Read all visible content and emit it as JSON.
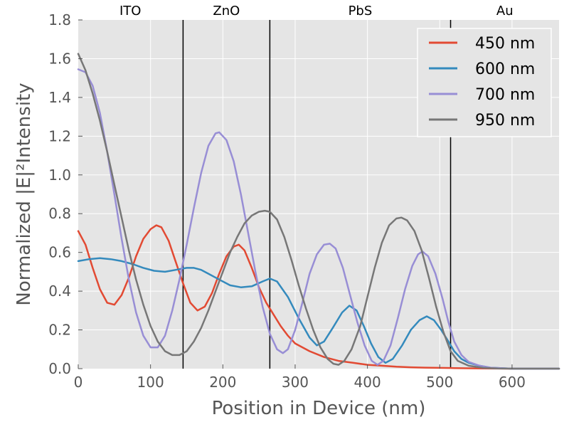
{
  "chart_data": {
    "type": "line",
    "xlabel": "Position in Device (nm)",
    "ylabel": "Normalized |E|²Intensity",
    "xlim": [
      0,
      665
    ],
    "ylim": [
      0,
      1.8
    ],
    "x_ticks": [
      0,
      100,
      200,
      300,
      400,
      500,
      600
    ],
    "y_ticks": [
      0.0,
      0.2,
      0.4,
      0.6,
      0.8,
      1.0,
      1.2,
      1.4,
      1.6,
      1.8
    ],
    "x_tick_labels": [
      "0",
      "100",
      "200",
      "300",
      "400",
      "500",
      "600"
    ],
    "y_tick_labels": [
      "0.0",
      "0.2",
      "0.4",
      "0.6",
      "0.8",
      "1.0",
      "1.2",
      "1.4",
      "1.6",
      "1.8"
    ],
    "grid": true,
    "legend_position": "top-right",
    "layer_boundaries": [
      145,
      265,
      515
    ],
    "layer_labels": [
      {
        "text": "ITO",
        "x": 72
      },
      {
        "text": "ZnO",
        "x": 205
      },
      {
        "text": "PbS",
        "x": 390
      },
      {
        "text": "Au",
        "x": 590
      }
    ],
    "series": [
      {
        "name": "450 nm",
        "color": "#E24A33",
        "points": [
          [
            0,
            0.71
          ],
          [
            10,
            0.64
          ],
          [
            20,
            0.52
          ],
          [
            30,
            0.41
          ],
          [
            40,
            0.34
          ],
          [
            50,
            0.33
          ],
          [
            60,
            0.38
          ],
          [
            70,
            0.47
          ],
          [
            80,
            0.58
          ],
          [
            90,
            0.67
          ],
          [
            100,
            0.72
          ],
          [
            108,
            0.74
          ],
          [
            115,
            0.73
          ],
          [
            125,
            0.66
          ],
          [
            135,
            0.55
          ],
          [
            145,
            0.44
          ],
          [
            155,
            0.34
          ],
          [
            165,
            0.3
          ],
          [
            175,
            0.32
          ],
          [
            185,
            0.39
          ],
          [
            195,
            0.49
          ],
          [
            205,
            0.58
          ],
          [
            215,
            0.63
          ],
          [
            222,
            0.64
          ],
          [
            230,
            0.61
          ],
          [
            240,
            0.52
          ],
          [
            250,
            0.42
          ],
          [
            260,
            0.34
          ],
          [
            270,
            0.28
          ],
          [
            280,
            0.22
          ],
          [
            290,
            0.17
          ],
          [
            300,
            0.13
          ],
          [
            320,
            0.09
          ],
          [
            340,
            0.06
          ],
          [
            360,
            0.04
          ],
          [
            380,
            0.03
          ],
          [
            400,
            0.02
          ],
          [
            420,
            0.015
          ],
          [
            440,
            0.01
          ],
          [
            460,
            0.007
          ],
          [
            480,
            0.005
          ],
          [
            500,
            0.004
          ],
          [
            520,
            0.003
          ],
          [
            560,
            0.001
          ],
          [
            600,
            0.0
          ],
          [
            665,
            0.0
          ]
        ]
      },
      {
        "name": "600 nm",
        "color": "#348ABD",
        "points": [
          [
            0,
            0.555
          ],
          [
            15,
            0.565
          ],
          [
            30,
            0.57
          ],
          [
            45,
            0.565
          ],
          [
            60,
            0.555
          ],
          [
            75,
            0.54
          ],
          [
            90,
            0.52
          ],
          [
            105,
            0.505
          ],
          [
            120,
            0.5
          ],
          [
            135,
            0.51
          ],
          [
            150,
            0.52
          ],
          [
            160,
            0.52
          ],
          [
            170,
            0.51
          ],
          [
            180,
            0.49
          ],
          [
            195,
            0.46
          ],
          [
            210,
            0.43
          ],
          [
            225,
            0.42
          ],
          [
            240,
            0.425
          ],
          [
            255,
            0.45
          ],
          [
            265,
            0.465
          ],
          [
            275,
            0.45
          ],
          [
            290,
            0.37
          ],
          [
            305,
            0.26
          ],
          [
            320,
            0.16
          ],
          [
            330,
            0.12
          ],
          [
            340,
            0.14
          ],
          [
            352,
            0.21
          ],
          [
            365,
            0.29
          ],
          [
            375,
            0.325
          ],
          [
            385,
            0.3
          ],
          [
            395,
            0.22
          ],
          [
            405,
            0.13
          ],
          [
            415,
            0.06
          ],
          [
            425,
            0.03
          ],
          [
            435,
            0.05
          ],
          [
            448,
            0.12
          ],
          [
            460,
            0.2
          ],
          [
            472,
            0.25
          ],
          [
            482,
            0.27
          ],
          [
            492,
            0.25
          ],
          [
            502,
            0.2
          ],
          [
            512,
            0.14
          ],
          [
            520,
            0.09
          ],
          [
            530,
            0.05
          ],
          [
            540,
            0.03
          ],
          [
            555,
            0.015
          ],
          [
            570,
            0.005
          ],
          [
            600,
            0.0
          ],
          [
            665,
            0.0
          ]
        ]
      },
      {
        "name": "700 nm",
        "color": "#988ED5",
        "points": [
          [
            0,
            1.545
          ],
          [
            10,
            1.53
          ],
          [
            20,
            1.46
          ],
          [
            30,
            1.32
          ],
          [
            40,
            1.12
          ],
          [
            50,
            0.9
          ],
          [
            60,
            0.67
          ],
          [
            70,
            0.46
          ],
          [
            80,
            0.29
          ],
          [
            90,
            0.17
          ],
          [
            100,
            0.11
          ],
          [
            110,
            0.11
          ],
          [
            120,
            0.17
          ],
          [
            130,
            0.3
          ],
          [
            140,
            0.46
          ],
          [
            150,
            0.64
          ],
          [
            160,
            0.83
          ],
          [
            170,
            1.01
          ],
          [
            180,
            1.15
          ],
          [
            190,
            1.215
          ],
          [
            195,
            1.22
          ],
          [
            205,
            1.18
          ],
          [
            215,
            1.07
          ],
          [
            225,
            0.9
          ],
          [
            235,
            0.7
          ],
          [
            245,
            0.5
          ],
          [
            255,
            0.32
          ],
          [
            265,
            0.18
          ],
          [
            275,
            0.1
          ],
          [
            283,
            0.08
          ],
          [
            290,
            0.1
          ],
          [
            300,
            0.2
          ],
          [
            310,
            0.34
          ],
          [
            320,
            0.49
          ],
          [
            330,
            0.59
          ],
          [
            340,
            0.64
          ],
          [
            348,
            0.645
          ],
          [
            356,
            0.62
          ],
          [
            366,
            0.52
          ],
          [
            376,
            0.38
          ],
          [
            386,
            0.24
          ],
          [
            396,
            0.12
          ],
          [
            406,
            0.04
          ],
          [
            414,
            0.02
          ],
          [
            422,
            0.04
          ],
          [
            432,
            0.12
          ],
          [
            442,
            0.26
          ],
          [
            452,
            0.41
          ],
          [
            462,
            0.53
          ],
          [
            470,
            0.59
          ],
          [
            476,
            0.605
          ],
          [
            484,
            0.58
          ],
          [
            494,
            0.49
          ],
          [
            504,
            0.36
          ],
          [
            512,
            0.24
          ],
          [
            520,
            0.14
          ],
          [
            530,
            0.07
          ],
          [
            540,
            0.035
          ],
          [
            555,
            0.015
          ],
          [
            570,
            0.005
          ],
          [
            600,
            0.0
          ],
          [
            665,
            0.0
          ]
        ]
      },
      {
        "name": "950 nm",
        "color": "#777777",
        "points": [
          [
            0,
            1.625
          ],
          [
            10,
            1.54
          ],
          [
            20,
            1.42
          ],
          [
            30,
            1.28
          ],
          [
            40,
            1.12
          ],
          [
            50,
            0.95
          ],
          [
            60,
            0.78
          ],
          [
            70,
            0.61
          ],
          [
            80,
            0.46
          ],
          [
            90,
            0.33
          ],
          [
            100,
            0.22
          ],
          [
            110,
            0.14
          ],
          [
            120,
            0.09
          ],
          [
            130,
            0.07
          ],
          [
            140,
            0.07
          ],
          [
            150,
            0.09
          ],
          [
            160,
            0.14
          ],
          [
            170,
            0.21
          ],
          [
            180,
            0.3
          ],
          [
            190,
            0.4
          ],
          [
            200,
            0.5
          ],
          [
            210,
            0.6
          ],
          [
            220,
            0.68
          ],
          [
            230,
            0.75
          ],
          [
            240,
            0.79
          ],
          [
            250,
            0.81
          ],
          [
            258,
            0.815
          ],
          [
            265,
            0.81
          ],
          [
            275,
            0.77
          ],
          [
            285,
            0.68
          ],
          [
            295,
            0.56
          ],
          [
            305,
            0.43
          ],
          [
            315,
            0.31
          ],
          [
            325,
            0.2
          ],
          [
            335,
            0.11
          ],
          [
            345,
            0.05
          ],
          [
            353,
            0.025
          ],
          [
            360,
            0.02
          ],
          [
            368,
            0.04
          ],
          [
            378,
            0.1
          ],
          [
            390,
            0.22
          ],
          [
            400,
            0.37
          ],
          [
            410,
            0.52
          ],
          [
            420,
            0.65
          ],
          [
            430,
            0.74
          ],
          [
            440,
            0.775
          ],
          [
            447,
            0.78
          ],
          [
            455,
            0.765
          ],
          [
            465,
            0.71
          ],
          [
            475,
            0.61
          ],
          [
            485,
            0.47
          ],
          [
            495,
            0.32
          ],
          [
            505,
            0.19
          ],
          [
            515,
            0.09
          ],
          [
            525,
            0.04
          ],
          [
            540,
            0.015
          ],
          [
            560,
            0.004
          ],
          [
            580,
            0.001
          ],
          [
            600,
            0.0
          ],
          [
            665,
            0.0
          ]
        ]
      }
    ]
  }
}
